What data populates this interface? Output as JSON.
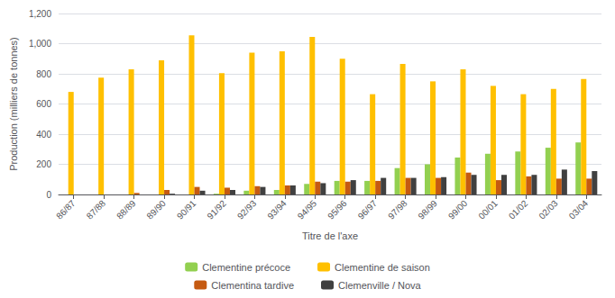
{
  "chart_data": {
    "type": "bar",
    "categories": [
      "86/87",
      "87/88",
      "88/89",
      "89/90",
      "90/91",
      "91/92",
      "92/93",
      "93/94",
      "94/95",
      "95/96",
      "96/97",
      "97/98",
      "98/99",
      "99/00",
      "00/01",
      "01/02",
      "02/03",
      "03/04"
    ],
    "series": [
      {
        "name": "Clementine précoce",
        "color": "#92D050",
        "values": [
          0,
          0,
          0,
          0,
          0,
          5,
          25,
          30,
          70,
          90,
          90,
          175,
          200,
          245,
          270,
          285,
          310,
          345
        ]
      },
      {
        "name": "Clementine de saison",
        "color": "#FFC000",
        "values": [
          680,
          775,
          830,
          890,
          1055,
          805,
          940,
          950,
          1045,
          900,
          665,
          865,
          750,
          830,
          720,
          665,
          700,
          765
        ]
      },
      {
        "name": "Clementina tardive",
        "color": "#C55A11",
        "values": [
          0,
          0,
          10,
          30,
          50,
          45,
          55,
          60,
          85,
          85,
          90,
          110,
          110,
          145,
          95,
          120,
          105,
          105
        ]
      },
      {
        "name": "Clemenville / Nova",
        "color": "#404040",
        "values": [
          0,
          0,
          0,
          5,
          25,
          30,
          50,
          60,
          75,
          95,
          110,
          110,
          115,
          130,
          130,
          130,
          165,
          155
        ]
      }
    ],
    "xlabel": "Titre de l'axe",
    "ylabel": "Production (milliers de tonnes)",
    "ylim": [
      0,
      1200
    ],
    "yticks": [
      0,
      200,
      400,
      600,
      800,
      1000,
      1200
    ],
    "grid": true,
    "legend": "bottom"
  }
}
